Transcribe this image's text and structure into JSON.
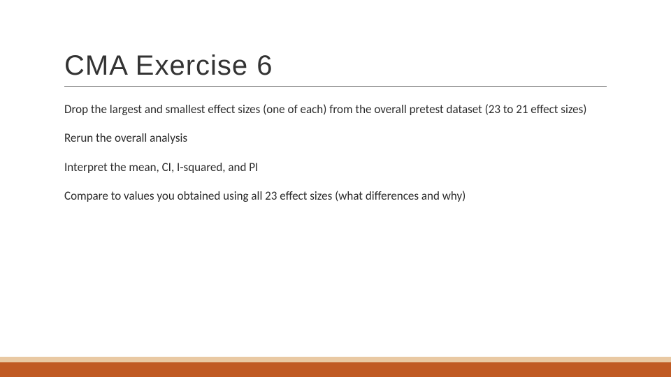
{
  "slide": {
    "title": "CMA Exercise 6",
    "paragraphs": [
      "Drop the largest and smallest effect sizes (one of each) from the overall pretest dataset (23 to 21 effect sizes)",
      "Rerun the overall analysis",
      "Interpret the mean, CI, I-squared, and PI",
      "Compare to values you obtained using all 23 effect sizes (what differences and why)"
    ]
  },
  "theme": {
    "background": "#ffffff",
    "title_color": "#333333",
    "body_color": "#2b2b2b",
    "underline_color": "#666666",
    "accent_bar_light": "#e9c9a3",
    "accent_bar_dark": "#c05a23",
    "title_fontsize": 40,
    "body_fontsize": 17
  }
}
